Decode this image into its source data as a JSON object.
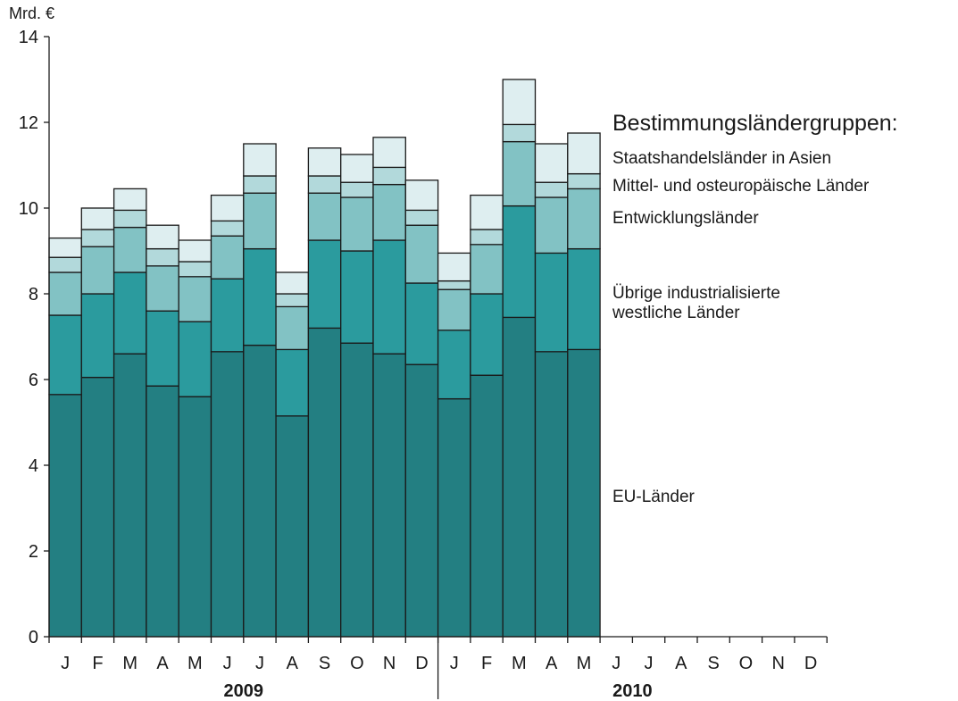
{
  "chart_data": {
    "type": "bar",
    "stacked": true,
    "ylabel": "Mrd. €",
    "ylim": [
      0,
      14
    ],
    "yticks": [
      0,
      2,
      4,
      6,
      8,
      10,
      12,
      14
    ],
    "grid": false,
    "legend_title": "Bestimmungsländergruppen:",
    "legend_position": "right",
    "years": [
      {
        "label": "2009",
        "months": [
          "J",
          "F",
          "M",
          "A",
          "M",
          "J",
          "J",
          "A",
          "S",
          "O",
          "N",
          "D"
        ]
      },
      {
        "label": "2010",
        "months": [
          "J",
          "F",
          "M",
          "A",
          "M",
          "J",
          "J",
          "A",
          "S",
          "O",
          "N",
          "D"
        ]
      }
    ],
    "series": [
      {
        "name": "EU-Länder",
        "color": "#237f82",
        "values": [
          5.65,
          6.05,
          6.6,
          5.85,
          5.6,
          6.65,
          6.8,
          5.15,
          7.2,
          6.85,
          6.6,
          6.35,
          5.55,
          6.1,
          7.45,
          6.65,
          6.7
        ]
      },
      {
        "name": "Übrige industrialisierte westliche Länder",
        "color": "#2b9b9e",
        "values": [
          1.85,
          1.95,
          1.9,
          1.75,
          1.75,
          1.7,
          2.25,
          1.55,
          2.05,
          2.15,
          2.65,
          1.9,
          1.6,
          1.9,
          2.6,
          2.3,
          2.35
        ]
      },
      {
        "name": "Entwicklungsländer",
        "color": "#82c2c4",
        "values": [
          1.0,
          1.1,
          1.05,
          1.05,
          1.05,
          1.0,
          1.3,
          1.0,
          1.1,
          1.25,
          1.3,
          1.35,
          0.95,
          1.15,
          1.5,
          1.3,
          1.4
        ]
      },
      {
        "name": "Mittel- und osteuropäische Länder",
        "color": "#b2d9db",
        "values": [
          0.35,
          0.4,
          0.4,
          0.4,
          0.35,
          0.35,
          0.4,
          0.3,
          0.4,
          0.35,
          0.4,
          0.35,
          0.2,
          0.35,
          0.4,
          0.35,
          0.35
        ]
      },
      {
        "name": "Staatshandelsländer in Asien",
        "color": "#deeef0",
        "values": [
          0.45,
          0.5,
          0.5,
          0.55,
          0.5,
          0.6,
          0.75,
          0.5,
          0.65,
          0.65,
          0.7,
          0.7,
          0.65,
          0.8,
          1.05,
          0.9,
          0.95
        ]
      }
    ]
  }
}
